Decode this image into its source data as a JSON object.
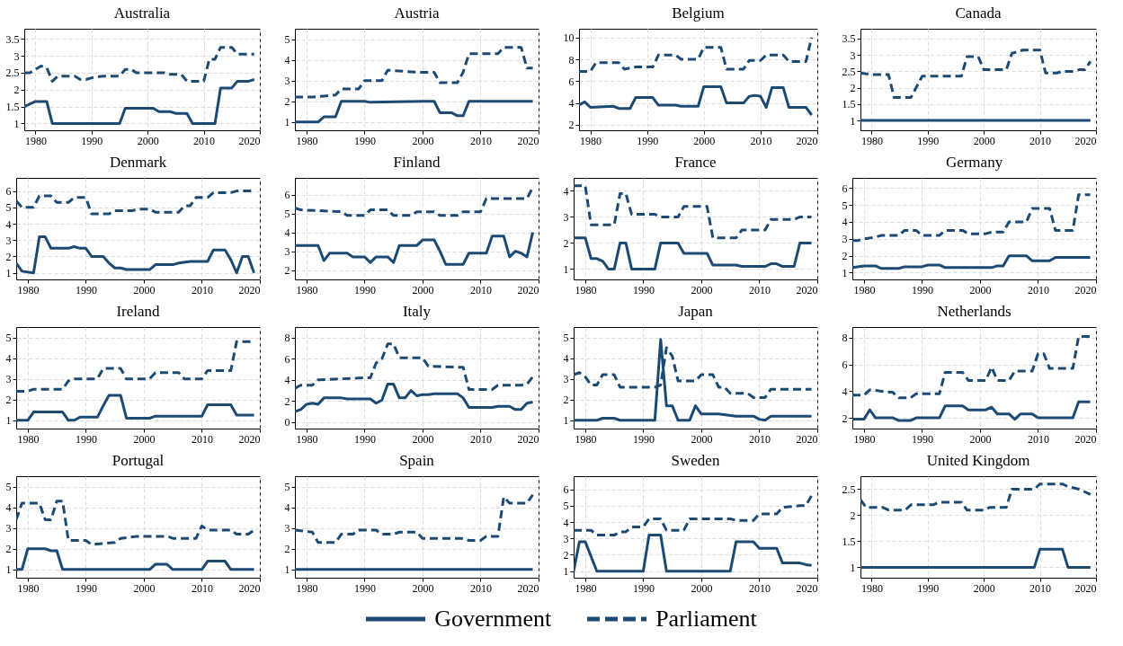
{
  "chart_data": [
    {
      "type": "line",
      "title": "Australia",
      "xlim": [
        1978,
        2020
      ],
      "xticks": [
        1980,
        1990,
        2000,
        2010,
        2020
      ],
      "ylim": [
        0.8,
        3.8
      ],
      "yticks": [
        1,
        1.5,
        2,
        2.5,
        3,
        3.5
      ],
      "grid": true,
      "legend": "bottom",
      "series": [
        {
          "name": "Government",
          "color": "#1d4a73",
          "line_style": "solid",
          "x": [
            1978,
            1980,
            1982,
            1983,
            1995,
            1996,
            2001,
            2002,
            2004,
            2005,
            2007,
            2008,
            2012,
            2013,
            2015,
            2016,
            2018,
            2019
          ],
          "values": [
            1.5,
            1.65,
            1.65,
            1.0,
            1.0,
            1.45,
            1.45,
            1.35,
            1.35,
            1.3,
            1.3,
            1.0,
            1.0,
            2.05,
            2.05,
            2.25,
            2.25,
            2.3
          ]
        },
        {
          "name": "Parliament",
          "color": "#1d4a73",
          "line_style": "dashed",
          "x": [
            1978,
            1979,
            1981,
            1982,
            1983,
            1984,
            1987,
            1988,
            1989,
            1990,
            1992,
            1995,
            1996,
            1997,
            1998,
            2003,
            2004,
            2006,
            2007,
            2010,
            2011,
            2012,
            2013,
            2015,
            2016,
            2019
          ],
          "values": [
            2.5,
            2.5,
            2.7,
            2.65,
            2.25,
            2.4,
            2.4,
            2.3,
            2.3,
            2.35,
            2.4,
            2.4,
            2.6,
            2.6,
            2.5,
            2.5,
            2.45,
            2.45,
            2.25,
            2.25,
            2.9,
            2.9,
            3.25,
            3.25,
            3.05,
            3.05
          ]
        }
      ]
    },
    {
      "type": "line",
      "title": "Austria",
      "xlim": [
        1978,
        2020
      ],
      "xticks": [
        1980,
        1990,
        2000,
        2010,
        2020
      ],
      "ylim": [
        0.6,
        5.5
      ],
      "yticks": [
        1,
        2,
        3,
        4,
        5
      ],
      "grid": true,
      "legend": "bottom",
      "series": [
        {
          "name": "Government",
          "color": "#1d4a73",
          "line_style": "solid",
          "x": [
            1978,
            1982,
            1983,
            1985,
            1986,
            1990,
            1991,
            2000,
            2002,
            2003,
            2005,
            2006,
            2007,
            2008,
            2019
          ],
          "values": [
            1,
            1,
            1.25,
            1.25,
            2,
            2,
            1.95,
            2,
            2,
            1.45,
            1.45,
            1.3,
            1.3,
            2,
            2
          ]
        },
        {
          "name": "Parliament",
          "color": "#1d4a73",
          "line_style": "dashed",
          "x": [
            1978,
            1981,
            1983,
            1985,
            1986,
            1989,
            1990,
            1993,
            1994,
            1999,
            2002,
            2003,
            2006,
            2007,
            2008,
            2013,
            2014,
            2017,
            2018,
            2019
          ],
          "values": [
            2.2,
            2.2,
            2.25,
            2.3,
            2.6,
            2.6,
            3,
            3,
            3.5,
            3.4,
            3.4,
            2.9,
            2.9,
            3.4,
            4.3,
            4.3,
            4.6,
            4.6,
            3.6,
            3.6
          ]
        }
      ]
    },
    {
      "type": "line",
      "title": "Belgium",
      "xlim": [
        1978,
        2020
      ],
      "xticks": [
        1980,
        1990,
        2000,
        2010,
        2020
      ],
      "ylim": [
        1.5,
        10.8
      ],
      "yticks": [
        2,
        4,
        6,
        8,
        10
      ],
      "grid": true,
      "legend": "bottom",
      "series": [
        {
          "name": "Government",
          "color": "#1d4a73",
          "line_style": "solid",
          "x": [
            1978,
            1979,
            1980,
            1984,
            1985,
            1987,
            1988,
            1991,
            1992,
            1995,
            1996,
            1999,
            2000,
            2003,
            2004,
            2007,
            2008,
            2009,
            2010,
            2011,
            2012,
            2014,
            2015,
            2018,
            2019
          ],
          "values": [
            3.8,
            4.1,
            3.6,
            3.7,
            3.5,
            3.5,
            4.5,
            4.5,
            3.8,
            3.8,
            3.7,
            3.7,
            5.5,
            5.5,
            4,
            4,
            4.6,
            4.7,
            4.6,
            3.6,
            5.4,
            5.4,
            3.6,
            3.6,
            2.9
          ]
        },
        {
          "name": "Parliament",
          "color": "#1d4a73",
          "line_style": "dashed",
          "x": [
            1978,
            1980,
            1981,
            1985,
            1986,
            1988,
            1991,
            1992,
            1995,
            1996,
            1999,
            2000,
            2003,
            2004,
            2007,
            2008,
            2010,
            2011,
            2014,
            2015,
            2018,
            2019
          ],
          "values": [
            6.9,
            6.9,
            7.7,
            7.7,
            7.1,
            7.3,
            7.3,
            8.4,
            8.4,
            8.0,
            8.0,
            9.1,
            9.1,
            7.1,
            7.1,
            7.9,
            7.9,
            8.4,
            8.4,
            7.8,
            7.8,
            10.0
          ]
        }
      ]
    },
    {
      "type": "line",
      "title": "Canada",
      "xlim": [
        1978,
        2020
      ],
      "xticks": [
        1980,
        1990,
        2000,
        2010,
        2020
      ],
      "ylim": [
        0.7,
        3.8
      ],
      "yticks": [
        1,
        1.5,
        2,
        2.5,
        3,
        3.5
      ],
      "grid": true,
      "legend": "bottom",
      "series": [
        {
          "name": "Government",
          "color": "#1d4a73",
          "line_style": "solid",
          "x": [
            1978,
            2019
          ],
          "values": [
            1,
            1
          ]
        },
        {
          "name": "Parliament",
          "color": "#1d4a73",
          "line_style": "dashed",
          "x": [
            1978,
            1980,
            1983,
            1984,
            1987,
            1989,
            1996,
            1997,
            1999,
            2000,
            2004,
            2005,
            2006,
            2007,
            2010,
            2011,
            2013,
            2014,
            2016,
            2017,
            2018,
            2019
          ],
          "values": [
            2.45,
            2.4,
            2.4,
            1.7,
            1.7,
            2.35,
            2.35,
            2.95,
            2.95,
            2.55,
            2.55,
            3.05,
            3.1,
            3.15,
            3.15,
            2.45,
            2.45,
            2.5,
            2.5,
            2.55,
            2.55,
            2.8
          ]
        }
      ]
    },
    {
      "type": "line",
      "title": "Denmark",
      "xlim": [
        1978,
        2020
      ],
      "xticks": [
        1980,
        1990,
        2000,
        2010,
        2020
      ],
      "ylim": [
        0.6,
        6.8
      ],
      "yticks": [
        1,
        2,
        3,
        4,
        5,
        6
      ],
      "grid": true,
      "legend": "bottom",
      "series": [
        {
          "name": "Government",
          "color": "#1d4a73",
          "line_style": "solid",
          "x": [
            1978,
            1979,
            1981,
            1982,
            1983,
            1984,
            1987,
            1988,
            1989,
            1990,
            1991,
            1993,
            1994,
            1995,
            1996,
            1997,
            2001,
            2002,
            2005,
            2006,
            2008,
            2011,
            2012,
            2014,
            2015,
            2016,
            2017,
            2018,
            2019
          ],
          "values": [
            1.6,
            1.1,
            1.0,
            3.2,
            3.2,
            2.5,
            2.5,
            2.6,
            2.5,
            2.5,
            2.0,
            2.0,
            1.6,
            1.3,
            1.3,
            1.2,
            1.2,
            1.5,
            1.5,
            1.6,
            1.7,
            1.7,
            2.4,
            2.4,
            1.8,
            1.0,
            2.0,
            2.0,
            1.0
          ]
        },
        {
          "name": "Parliament",
          "color": "#1d4a73",
          "line_style": "dashed",
          "x": [
            1978,
            1979,
            1981,
            1982,
            1984,
            1985,
            1987,
            1988,
            1990,
            1991,
            1994,
            1995,
            1998,
            1999,
            2001,
            2002,
            2006,
            2007,
            2008,
            2009,
            2011,
            2012,
            2015,
            2016,
            2019
          ],
          "values": [
            5.4,
            5.0,
            5.0,
            5.7,
            5.7,
            5.3,
            5.3,
            5.6,
            5.6,
            4.6,
            4.6,
            4.8,
            4.8,
            4.9,
            4.9,
            4.7,
            4.7,
            5.1,
            5.1,
            5.6,
            5.6,
            5.9,
            5.9,
            6.0,
            6.0
          ]
        }
      ]
    },
    {
      "type": "line",
      "title": "Finland",
      "xlim": [
        1978,
        2020
      ],
      "xticks": [
        1980,
        1990,
        2000,
        2010,
        2020
      ],
      "ylim": [
        1.5,
        6.9
      ],
      "yticks": [
        2,
        3,
        4,
        5,
        6
      ],
      "grid": true,
      "legend": "bottom",
      "series": [
        {
          "name": "Government",
          "color": "#1d4a73",
          "line_style": "solid",
          "x": [
            1978,
            1982,
            1983,
            1984,
            1987,
            1988,
            1990,
            1991,
            1992,
            1994,
            1995,
            1996,
            1999,
            2000,
            2002,
            2003,
            2004,
            2007,
            2008,
            2011,
            2012,
            2014,
            2015,
            2016,
            2017,
            2018,
            2019
          ],
          "values": [
            3.3,
            3.3,
            2.5,
            2.9,
            2.9,
            2.7,
            2.7,
            2.4,
            2.7,
            2.7,
            2.4,
            3.3,
            3.3,
            3.6,
            3.6,
            3.0,
            2.3,
            2.3,
            2.9,
            2.9,
            3.8,
            3.8,
            2.7,
            3.0,
            2.9,
            2.7,
            4.0
          ]
        },
        {
          "name": "Parliament",
          "color": "#1d4a73",
          "line_style": "dashed",
          "x": [
            1978,
            1979,
            1986,
            1987,
            1990,
            1991,
            1994,
            1995,
            1998,
            1999,
            2002,
            2003,
            2006,
            2007,
            2010,
            2011,
            2018,
            2019
          ],
          "values": [
            5.3,
            5.2,
            5.1,
            4.9,
            4.9,
            5.2,
            5.2,
            4.9,
            4.9,
            5.1,
            5.1,
            4.9,
            4.9,
            5.1,
            5.1,
            5.8,
            5.8,
            6.4
          ]
        }
      ]
    },
    {
      "type": "line",
      "title": "France",
      "xlim": [
        1978,
        2020
      ],
      "xticks": [
        1980,
        1990,
        2000,
        2010,
        2020
      ],
      "ylim": [
        0.6,
        4.5
      ],
      "yticks": [
        1,
        2,
        3,
        4
      ],
      "grid": true,
      "legend": "bottom",
      "series": [
        {
          "name": "Government",
          "color": "#1d4a73",
          "line_style": "solid",
          "x": [
            1978,
            1980,
            1981,
            1982,
            1983,
            1984,
            1985,
            1986,
            1987,
            1988,
            1992,
            1993,
            1996,
            1997,
            2001,
            2002,
            2006,
            2007,
            2011,
            2012,
            2013,
            2014,
            2016,
            2017,
            2019
          ],
          "values": [
            2.2,
            2.2,
            1.4,
            1.4,
            1.3,
            1.0,
            1.0,
            2.0,
            2.0,
            1.0,
            1.0,
            2.0,
            2.0,
            1.6,
            1.6,
            1.15,
            1.15,
            1.1,
            1.1,
            1.2,
            1.2,
            1.1,
            1.1,
            2.0,
            2.0
          ]
        },
        {
          "name": "Parliament",
          "color": "#1d4a73",
          "line_style": "dashed",
          "x": [
            1978,
            1980,
            1981,
            1985,
            1986,
            1987,
            1988,
            1992,
            1993,
            1996,
            1997,
            2001,
            2002,
            2006,
            2007,
            2011,
            2012,
            2016,
            2017,
            2019
          ],
          "values": [
            4.2,
            4.2,
            2.7,
            2.7,
            3.9,
            3.9,
            3.1,
            3.1,
            3.0,
            3.0,
            3.4,
            3.4,
            2.2,
            2.2,
            2.5,
            2.5,
            2.9,
            2.9,
            3.0,
            3.0
          ]
        }
      ]
    },
    {
      "type": "line",
      "title": "Germany",
      "xlim": [
        1978,
        2020
      ],
      "xticks": [
        1980,
        1990,
        2000,
        2010,
        2020
      ],
      "ylim": [
        0.6,
        6.6
      ],
      "yticks": [
        1,
        2,
        3,
        4,
        5,
        6
      ],
      "grid": true,
      "legend": "bottom",
      "series": [
        {
          "name": "Government",
          "color": "#1d4a73",
          "line_style": "solid",
          "x": [
            1978,
            1980,
            1982,
            1983,
            1986,
            1987,
            1990,
            1991,
            1993,
            1994,
            2002,
            2003,
            2004,
            2005,
            2008,
            2009,
            2012,
            2013,
            2019
          ],
          "values": [
            1.3,
            1.4,
            1.4,
            1.25,
            1.25,
            1.35,
            1.35,
            1.45,
            1.45,
            1.3,
            1.3,
            1.4,
            1.4,
            2.0,
            2.0,
            1.7,
            1.7,
            1.9,
            1.9
          ]
        },
        {
          "name": "Parliament",
          "color": "#1d4a73",
          "line_style": "dashed",
          "x": [
            1978,
            1979,
            1980,
            1982,
            1983,
            1986,
            1987,
            1989,
            1990,
            1993,
            1994,
            1997,
            1998,
            2001,
            2002,
            2004,
            2005,
            2008,
            2009,
            2012,
            2013,
            2016,
            2017,
            2019
          ],
          "values": [
            2.9,
            2.9,
            3.0,
            3.1,
            3.2,
            3.2,
            3.5,
            3.5,
            3.2,
            3.2,
            3.5,
            3.5,
            3.3,
            3.3,
            3.4,
            3.4,
            4.0,
            4.0,
            4.8,
            4.8,
            3.5,
            3.5,
            5.6,
            5.6
          ]
        }
      ]
    },
    {
      "type": "line",
      "title": "Ireland",
      "xlim": [
        1978,
        2020
      ],
      "xticks": [
        1980,
        1990,
        2000,
        2010,
        2020
      ],
      "ylim": [
        0.6,
        5.5
      ],
      "yticks": [
        1,
        2,
        3,
        4,
        5
      ],
      "grid": true,
      "legend": "bottom",
      "series": [
        {
          "name": "Government",
          "color": "#1d4a73",
          "line_style": "solid",
          "x": [
            1978,
            1980,
            1981,
            1986,
            1987,
            1988,
            1989,
            1992,
            1993,
            1994,
            1996,
            1997,
            2001,
            2002,
            2010,
            2011,
            2015,
            2016,
            2019
          ],
          "values": [
            1,
            1,
            1.4,
            1.4,
            1.0,
            1.0,
            1.15,
            1.15,
            1.7,
            2.2,
            2.2,
            1.1,
            1.1,
            1.2,
            1.2,
            1.75,
            1.75,
            1.25,
            1.25
          ]
        },
        {
          "name": "Parliament",
          "color": "#1d4a73",
          "line_style": "dashed",
          "x": [
            1978,
            1980,
            1981,
            1986,
            1987,
            1988,
            1992,
            1993,
            1996,
            1997,
            2001,
            2002,
            2006,
            2007,
            2010,
            2011,
            2015,
            2016,
            2019
          ],
          "values": [
            2.4,
            2.4,
            2.5,
            2.5,
            2.9,
            3.0,
            3.0,
            3.5,
            3.5,
            3.0,
            3.0,
            3.3,
            3.3,
            3.0,
            3.0,
            3.4,
            3.4,
            4.8,
            4.8
          ]
        }
      ]
    },
    {
      "type": "line",
      "title": "Italy",
      "xlim": [
        1978,
        2020
      ],
      "xticks": [
        1980,
        1990,
        2000,
        2010,
        2020
      ],
      "ylim": [
        -0.6,
        9
      ],
      "yticks": [
        0,
        2,
        4,
        6,
        8
      ],
      "grid": true,
      "legend": "bottom",
      "series": [
        {
          "name": "Government",
          "color": "#1d4a73",
          "line_style": "solid",
          "x": [
            1978,
            1979,
            1980,
            1981,
            1982,
            1983,
            1986,
            1987,
            1991,
            1992,
            1993,
            1994,
            1995,
            1996,
            1997,
            1998,
            1999,
            2000,
            2001,
            2002,
            2006,
            2007,
            2008,
            2012,
            2013,
            2015,
            2016,
            2017,
            2018,
            2019
          ],
          "values": [
            1.0,
            1.2,
            1.7,
            1.8,
            1.7,
            2.3,
            2.3,
            2.2,
            2.2,
            1.8,
            2.1,
            3.6,
            3.6,
            2.3,
            2.3,
            3.0,
            2.5,
            2.6,
            2.6,
            2.7,
            2.7,
            2.3,
            1.4,
            1.4,
            1.5,
            1.5,
            1.2,
            1.2,
            1.8,
            1.9
          ]
        },
        {
          "name": "Parliament",
          "color": "#1d4a73",
          "line_style": "dashed",
          "x": [
            1978,
            1979,
            1981,
            1982,
            1986,
            1990,
            1991,
            1992,
            1993,
            1994,
            1995,
            1996,
            2000,
            2001,
            2006,
            2007,
            2008,
            2012,
            2013,
            2017,
            2018,
            2019
          ],
          "values": [
            3.2,
            3.5,
            3.5,
            4.0,
            4.1,
            4.2,
            4.2,
            5.6,
            6.0,
            7.4,
            7.4,
            6.1,
            6.1,
            5.3,
            5.2,
            5.2,
            3.1,
            3.1,
            3.5,
            3.5,
            3.6,
            4.3
          ]
        }
      ]
    },
    {
      "type": "line",
      "title": "Japan",
      "xlim": [
        1978,
        2020
      ],
      "xticks": [
        1980,
        1990,
        2000,
        2010,
        2020
      ],
      "ylim": [
        0.6,
        5.5
      ],
      "yticks": [
        1,
        2,
        3,
        4,
        5
      ],
      "grid": true,
      "legend": "bottom",
      "series": [
        {
          "name": "Government",
          "color": "#1d4a73",
          "line_style": "solid",
          "x": [
            1978,
            1982,
            1983,
            1985,
            1986,
            1992,
            1993,
            1994,
            1995,
            1996,
            1998,
            1999,
            2000,
            2003,
            2006,
            2009,
            2010,
            2011,
            2012,
            2019
          ],
          "values": [
            1.0,
            1.0,
            1.1,
            1.1,
            1.0,
            1.0,
            4.9,
            1.7,
            1.7,
            1.0,
            1.0,
            1.7,
            1.3,
            1.3,
            1.2,
            1.2,
            1.05,
            1.0,
            1.2,
            1.2
          ]
        },
        {
          "name": "Parliament",
          "color": "#1d4a73",
          "line_style": "dashed",
          "x": [
            1978,
            1979,
            1980,
            1981,
            1982,
            1983,
            1985,
            1986,
            1992,
            1993,
            1994,
            1995,
            1996,
            1999,
            2000,
            2002,
            2003,
            2004,
            2005,
            2008,
            2009,
            2011,
            2012,
            2019
          ],
          "values": [
            3.2,
            3.3,
            3.1,
            2.7,
            2.7,
            3.2,
            3.2,
            2.6,
            2.6,
            2.7,
            4.5,
            4.1,
            2.9,
            2.9,
            3.2,
            3.2,
            2.6,
            2.6,
            2.3,
            2.3,
            2.1,
            2.1,
            2.5,
            2.5
          ]
        }
      ]
    },
    {
      "type": "line",
      "title": "Netherlands",
      "xlim": [
        1978,
        2020
      ],
      "xticks": [
        1980,
        1990,
        2000,
        2010,
        2020
      ],
      "ylim": [
        1.2,
        8.8
      ],
      "yticks": [
        2,
        4,
        6,
        8
      ],
      "grid": true,
      "legend": "bottom",
      "series": [
        {
          "name": "Government",
          "color": "#1d4a73",
          "line_style": "solid",
          "x": [
            1978,
            1980,
            1981,
            1982,
            1985,
            1986,
            1988,
            1989,
            1993,
            1994,
            1997,
            1998,
            2001,
            2002,
            2003,
            2005,
            2006,
            2007,
            2009,
            2010,
            2016,
            2017,
            2019
          ],
          "values": [
            1.9,
            1.9,
            2.6,
            2.0,
            2.0,
            1.8,
            1.8,
            2.0,
            2.0,
            2.9,
            2.9,
            2.6,
            2.6,
            2.8,
            2.3,
            2.3,
            1.9,
            2.3,
            2.3,
            2.0,
            2.0,
            3.2,
            3.2
          ]
        },
        {
          "name": "Parliament",
          "color": "#1d4a73",
          "line_style": "dashed",
          "x": [
            1978,
            1980,
            1981,
            1985,
            1986,
            1988,
            1989,
            1993,
            1994,
            1997,
            1998,
            2001,
            2002,
            2003,
            2005,
            2006,
            2009,
            2010,
            2011,
            2012,
            2016,
            2017,
            2019
          ],
          "values": [
            3.7,
            3.7,
            4.1,
            3.9,
            3.5,
            3.5,
            3.8,
            3.8,
            5.4,
            5.4,
            4.8,
            4.8,
            5.8,
            4.8,
            4.8,
            5.5,
            5.5,
            6.8,
            6.8,
            5.7,
            5.7,
            8.1,
            8.1
          ]
        }
      ]
    },
    {
      "type": "line",
      "title": "Portugal",
      "xlim": [
        1978,
        2020
      ],
      "xticks": [
        1980,
        1990,
        2000,
        2010,
        2020
      ],
      "ylim": [
        0.6,
        5.5
      ],
      "yticks": [
        1,
        2,
        3,
        4,
        5
      ],
      "grid": true,
      "legend": "bottom",
      "series": [
        {
          "name": "Government",
          "color": "#1d4a73",
          "line_style": "solid",
          "x": [
            1978,
            1979,
            1980,
            1983,
            1984,
            1985,
            1986,
            2001,
            2002,
            2004,
            2005,
            2010,
            2011,
            2014,
            2015,
            2019
          ],
          "values": [
            1.0,
            1.0,
            2.0,
            2.0,
            1.9,
            1.9,
            1.0,
            1.0,
            1.25,
            1.25,
            1.0,
            1.0,
            1.4,
            1.4,
            1.0,
            1.0
          ]
        },
        {
          "name": "Parliament",
          "color": "#1d4a73",
          "line_style": "dashed",
          "x": [
            1978,
            1979,
            1982,
            1983,
            1984,
            1985,
            1986,
            1987,
            1990,
            1991,
            1995,
            1996,
            1999,
            2004,
            2005,
            2009,
            2010,
            2011,
            2015,
            2016,
            2018,
            2019
          ],
          "values": [
            3.4,
            4.2,
            4.2,
            3.4,
            3.4,
            4.3,
            4.3,
            2.4,
            2.4,
            2.2,
            2.3,
            2.5,
            2.6,
            2.6,
            2.5,
            2.5,
            3.1,
            2.9,
            2.9,
            2.7,
            2.7,
            2.9
          ]
        }
      ]
    },
    {
      "type": "line",
      "title": "Spain",
      "xlim": [
        1978,
        2020
      ],
      "xticks": [
        1980,
        1990,
        2000,
        2010,
        2020
      ],
      "ylim": [
        0.6,
        5.5
      ],
      "yticks": [
        1,
        2,
        3,
        4,
        5
      ],
      "grid": true,
      "legend": "bottom",
      "series": [
        {
          "name": "Government",
          "color": "#1d4a73",
          "line_style": "solid",
          "x": [
            1978,
            2019
          ],
          "values": [
            1,
            1
          ]
        },
        {
          "name": "Parliament",
          "color": "#1d4a73",
          "line_style": "dashed",
          "x": [
            1978,
            1981,
            1982,
            1985,
            1986,
            1988,
            1989,
            1992,
            1993,
            1995,
            1996,
            1999,
            2000,
            2007,
            2008,
            2010,
            2011,
            2013,
            2014,
            2015,
            2018,
            2019
          ],
          "values": [
            2.9,
            2.8,
            2.3,
            2.3,
            2.7,
            2.7,
            2.9,
            2.9,
            2.7,
            2.7,
            2.8,
            2.8,
            2.5,
            2.5,
            2.4,
            2.4,
            2.6,
            2.6,
            4.5,
            4.2,
            4.2,
            4.6
          ]
        }
      ]
    },
    {
      "type": "line",
      "title": "Sweden",
      "xlim": [
        1978,
        2020
      ],
      "xticks": [
        1980,
        1990,
        2000,
        2010,
        2020
      ],
      "ylim": [
        0.6,
        6.8
      ],
      "yticks": [
        1,
        2,
        3,
        4,
        5,
        6
      ],
      "grid": true,
      "legend": "bottom",
      "series": [
        {
          "name": "Government",
          "color": "#1d4a73",
          "line_style": "solid",
          "x": [
            1978,
            1979,
            1980,
            1982,
            1990,
            1991,
            1993,
            1994,
            2005,
            2006,
            2009,
            2010,
            2013,
            2014,
            2017,
            2018,
            2019
          ],
          "values": [
            1.0,
            2.8,
            2.8,
            1.0,
            1.0,
            3.2,
            3.2,
            1.0,
            1.0,
            2.8,
            2.8,
            2.4,
            2.4,
            1.5,
            1.5,
            1.4,
            1.35
          ]
        },
        {
          "name": "Parliament",
          "color": "#1d4a73",
          "line_style": "dashed",
          "x": [
            1978,
            1981,
            1982,
            1985,
            1986,
            1987,
            1988,
            1990,
            1991,
            1993,
            1994,
            1997,
            1998,
            2005,
            2006,
            2009,
            2010,
            2013,
            2014,
            2017,
            2018,
            2019
          ],
          "values": [
            3.5,
            3.5,
            3.2,
            3.2,
            3.4,
            3.4,
            3.7,
            3.7,
            4.2,
            4.2,
            3.5,
            3.5,
            4.2,
            4.2,
            4.1,
            4.1,
            4.5,
            4.5,
            4.9,
            5.0,
            5.0,
            5.6
          ]
        }
      ]
    },
    {
      "type": "line",
      "title": "United Kingdom",
      "xlim": [
        1978,
        2020
      ],
      "xticks": [
        1980,
        1990,
        2000,
        2010,
        2020
      ],
      "ylim": [
        0.8,
        2.75
      ],
      "yticks": [
        1,
        1.5,
        2,
        2.5
      ],
      "grid": true,
      "legend": "bottom",
      "series": [
        {
          "name": "Government",
          "color": "#1d4a73",
          "line_style": "solid",
          "x": [
            1978,
            2009,
            2010,
            2014,
            2015,
            2019
          ],
          "values": [
            1,
            1,
            1.35,
            1.35,
            1.0,
            1.0
          ]
        },
        {
          "name": "Parliament",
          "color": "#1d4a73",
          "line_style": "dashed",
          "x": [
            1978,
            1979,
            1982,
            1983,
            1986,
            1987,
            1991,
            1992,
            1996,
            1997,
            2000,
            2001,
            2004,
            2005,
            2009,
            2010,
            2014,
            2015,
            2017,
            2019
          ],
          "values": [
            2.3,
            2.15,
            2.15,
            2.1,
            2.1,
            2.2,
            2.2,
            2.25,
            2.25,
            2.1,
            2.1,
            2.15,
            2.15,
            2.5,
            2.5,
            2.6,
            2.6,
            2.55,
            2.5,
            2.4
          ]
        }
      ]
    }
  ]
}
